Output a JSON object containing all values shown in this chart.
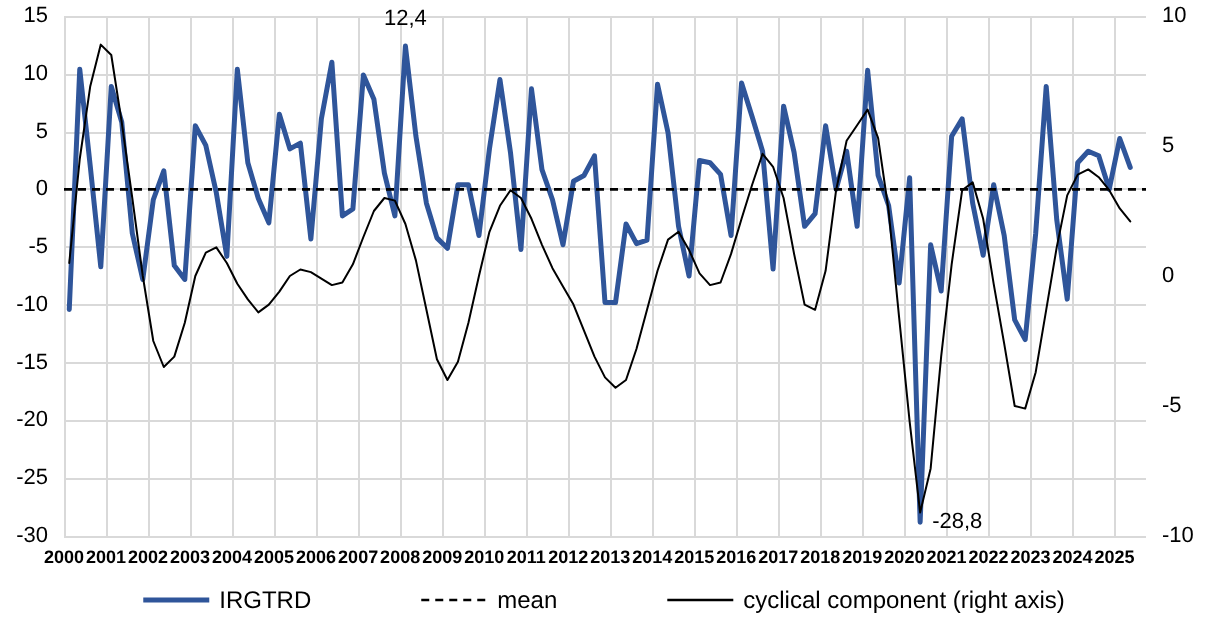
{
  "chart_data": {
    "type": "line",
    "x": [
      2000.125,
      2000.375,
      2000.625,
      2000.875,
      2001.125,
      2001.375,
      2001.625,
      2001.875,
      2002.125,
      2002.375,
      2002.625,
      2002.875,
      2003.125,
      2003.375,
      2003.625,
      2003.875,
      2004.125,
      2004.375,
      2004.625,
      2004.875,
      2005.125,
      2005.375,
      2005.625,
      2005.875,
      2006.125,
      2006.375,
      2006.625,
      2006.875,
      2007.125,
      2007.375,
      2007.625,
      2007.875,
      2008.125,
      2008.375,
      2008.625,
      2008.875,
      2009.125,
      2009.375,
      2009.625,
      2009.875,
      2010.125,
      2010.375,
      2010.625,
      2010.875,
      2011.125,
      2011.375,
      2011.625,
      2011.875,
      2012.125,
      2012.375,
      2012.625,
      2012.875,
      2013.125,
      2013.375,
      2013.625,
      2013.875,
      2014.125,
      2014.375,
      2014.625,
      2014.875,
      2015.125,
      2015.375,
      2015.625,
      2015.875,
      2016.125,
      2016.375,
      2016.625,
      2016.875,
      2017.125,
      2017.375,
      2017.625,
      2017.875,
      2018.125,
      2018.375,
      2018.625,
      2018.875,
      2019.125,
      2019.375,
      2019.625,
      2019.875,
      2020.125,
      2020.375,
      2020.625,
      2020.875,
      2021.125,
      2021.375,
      2021.625,
      2021.875,
      2022.125,
      2022.375,
      2022.625,
      2022.875,
      2023.125,
      2023.375,
      2023.625,
      2023.875,
      2024.125,
      2024.375,
      2024.625,
      2024.875,
      2025.125,
      2025.375
    ],
    "series": [
      {
        "name": "IRGTRD",
        "color": "#2f559a",
        "values": [
          -10.4,
          10.4,
          2,
          -6.7,
          8.9,
          5.8,
          -3.8,
          -7.8,
          -0.9,
          1.6,
          -6.6,
          -7.8,
          5.5,
          3.8,
          -0.3,
          -5.8,
          10.4,
          2.3,
          -0.8,
          -2.9,
          6.5,
          3.5,
          4,
          -4.3,
          6.1,
          11,
          -2.3,
          -1.7,
          9.9,
          7.8,
          1.4,
          -2.3,
          12.4,
          4.6,
          -1.2,
          -4.2,
          -5.1,
          0.4,
          0.4,
          -4,
          3.5,
          9.5,
          3.2,
          -5.2,
          8.7,
          1.7,
          -0.9,
          -4.8,
          0.7,
          1.2,
          2.9,
          -9.8,
          -9.8,
          -3,
          -4.7,
          -4.4,
          9.1,
          4.9,
          -3.2,
          -7.5,
          2.5,
          2.3,
          1.3,
          -4,
          9.2,
          6.3,
          3.3,
          -6.9,
          7.2,
          3.2,
          -3.2,
          -2.1,
          5.5,
          0,
          3.3,
          -3.2,
          10.3,
          1.2,
          -1.4,
          -8.1,
          1,
          -28.8,
          -4.8,
          -8.8,
          4.6,
          6.1,
          -1.2,
          -5.7,
          0.4,
          -4,
          -11.3,
          -13,
          -3.8,
          8.9,
          -2.6,
          -9.5,
          2.3,
          3.3,
          2.9,
          0,
          4.4,
          1.9
        ]
      },
      {
        "name": "cyclical component (right axis)",
        "color": "#000000",
        "axis": "y2",
        "values": [
          0.5,
          4.5,
          7.3,
          8.9,
          8.5,
          5.9,
          3,
          0,
          -2.5,
          -3.5,
          -3.1,
          -1.8,
          0,
          0.9,
          1.1,
          0.5,
          -0.3,
          -0.9,
          -1.4,
          -1.1,
          -0.6,
          0,
          0.25,
          0.15,
          -0.1,
          -0.35,
          -0.25,
          0.45,
          1.5,
          2.5,
          3,
          2.9,
          2,
          0.6,
          -1.3,
          -3.2,
          -4,
          -3.3,
          -1.8,
          0,
          1.7,
          2.7,
          3.3,
          3,
          2.2,
          1.2,
          0.3,
          -0.4,
          -1.1,
          -2.1,
          -3.1,
          -3.9,
          -4.3,
          -4,
          -2.8,
          -1.3,
          0.2,
          1.4,
          1.7,
          1,
          0.1,
          -0.35,
          -0.25,
          0.85,
          2.2,
          3.5,
          4.7,
          4.2,
          3,
          0.85,
          -1.1,
          -1.3,
          0.2,
          3.3,
          5.2,
          5.8,
          6.4,
          5.3,
          2.5,
          -1.6,
          -5.6,
          -9.1,
          -7.4,
          -3.1,
          0.45,
          3.3,
          3.6,
          2.2,
          -0.3,
          -2.6,
          -5,
          -5.1,
          -3.7,
          -1.3,
          1.1,
          3.1,
          3.9,
          4.1,
          3.8,
          3.3,
          2.6,
          2.1
        ]
      }
    ],
    "ref_lines": [
      {
        "axis": "y",
        "value": 0,
        "label": "mean",
        "color": "#000000",
        "line_style": "dashed"
      }
    ],
    "annotations": [
      {
        "text": "12,4",
        "x": 2008.125,
        "y": 12.4
      },
      {
        "text": "-28,8",
        "x": 2020.375,
        "y": -28.8
      }
    ],
    "xlim": [
      2000,
      2025.75
    ],
    "xticks": [
      2000,
      2001,
      2002,
      2003,
      2004,
      2005,
      2006,
      2007,
      2008,
      2009,
      2010,
      2011,
      2012,
      2013,
      2014,
      2015,
      2016,
      2017,
      2018,
      2019,
      2020,
      2021,
      2022,
      2023,
      2024,
      2025
    ],
    "ylim": [
      -30,
      15
    ],
    "yticks": [
      -30,
      -25,
      -20,
      -15,
      -10,
      -5,
      0,
      5,
      10,
      15
    ],
    "y2lim": [
      -10,
      10
    ],
    "y2ticks": [
      -10,
      -5,
      0,
      5,
      10
    ],
    "grid": true,
    "legend": "bottom",
    "marker": "none",
    "line_style": "solid"
  }
}
